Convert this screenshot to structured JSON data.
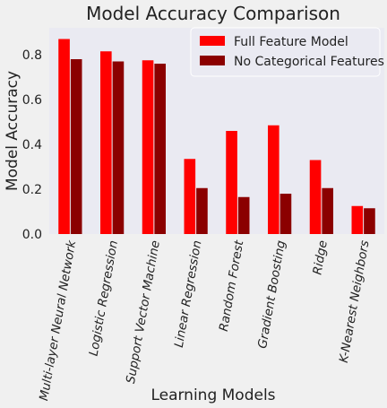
{
  "chart_data": {
    "type": "bar",
    "title": "Model Accuracy Comparison",
    "xlabel": "Learning Models",
    "ylabel": "Model Accuracy",
    "ylim": [
      0,
      0.92
    ],
    "yticks": [
      0.0,
      0.2,
      0.4,
      0.6,
      0.8
    ],
    "ytick_labels": [
      "0.0",
      "0.2",
      "0.4",
      "0.6",
      "0.8"
    ],
    "categories": [
      "Multi-layer Neural Network",
      "Logistic Regression",
      "Support Vector Machine",
      "Linear Regression",
      "Random Forest",
      "Gradient Boosting",
      "Ridge",
      "K-Nearest Neighbors"
    ],
    "series": [
      {
        "name": "Full Feature Model",
        "color": "#ff0000",
        "values": [
          0.87,
          0.815,
          0.775,
          0.335,
          0.46,
          0.485,
          0.33,
          0.125
        ]
      },
      {
        "name": "No Categorical Features",
        "color": "#8b0000",
        "values": [
          0.78,
          0.77,
          0.76,
          0.205,
          0.165,
          0.18,
          0.205,
          0.115
        ]
      }
    ],
    "legend_position": "top-right",
    "grid": false,
    "background": "#eaeaf2"
  }
}
